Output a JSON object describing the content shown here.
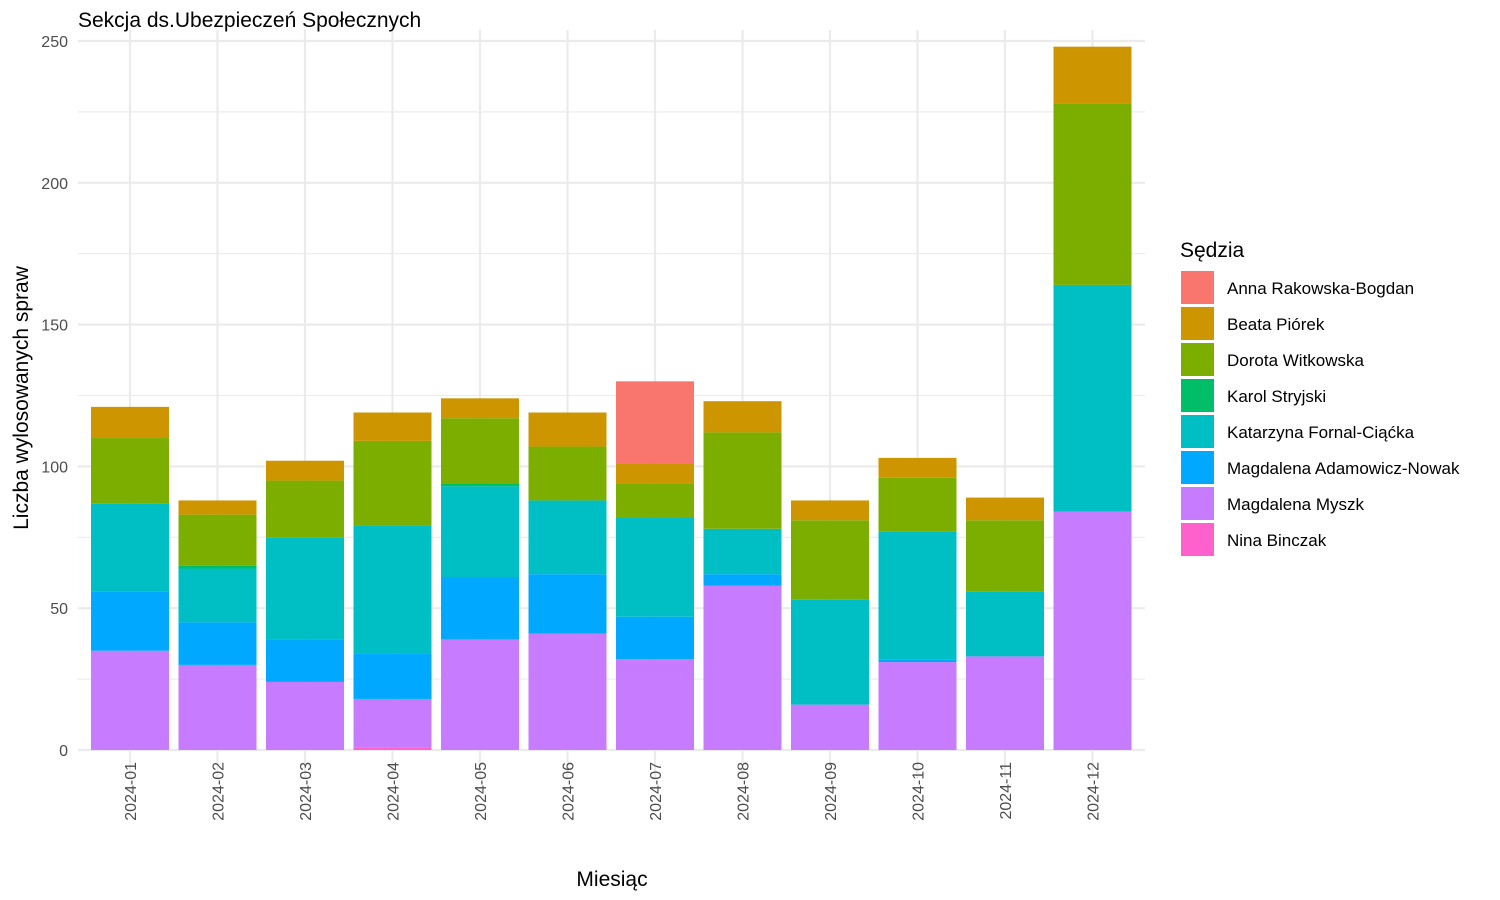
{
  "chart_data": {
    "type": "bar",
    "stacked": true,
    "title": "Sekcja ds.Ubezpieczeń Społecznych",
    "xlabel": "Miesiąc",
    "ylabel": "Liczba wylosowanych spraw",
    "ylim": [
      0,
      250
    ],
    "yticks": [
      0,
      50,
      100,
      150,
      200,
      250
    ],
    "grid": true,
    "legend_title": "Sędzia",
    "legend_position": "right",
    "categories": [
      "2024-01",
      "2024-02",
      "2024-03",
      "2024-04",
      "2024-05",
      "2024-06",
      "2024-07",
      "2024-08",
      "2024-09",
      "2024-10",
      "2024-11",
      "2024-12"
    ],
    "series": [
      {
        "name": "Anna Rakowska-Bogdan",
        "color": "#F8766D",
        "values": [
          0,
          0,
          0,
          0,
          0,
          0,
          29,
          0,
          0,
          0,
          0,
          0
        ]
      },
      {
        "name": "Beata Piórek",
        "color": "#CD9600",
        "values": [
          11,
          5,
          7,
          10,
          7,
          12,
          7,
          11,
          7,
          7,
          8,
          20
        ]
      },
      {
        "name": "Dorota Witkowska",
        "color": "#7CAE00",
        "values": [
          23,
          18,
          20,
          30,
          23,
          19,
          12,
          34,
          28,
          19,
          25,
          64
        ]
      },
      {
        "name": "Karol Stryjski",
        "color": "#00BE67",
        "values": [
          0,
          1,
          0,
          0,
          1,
          0,
          0,
          0,
          0,
          0,
          0,
          0
        ]
      },
      {
        "name": "Katarzyna Fornal-Ciąćka",
        "color": "#00BFC4",
        "values": [
          31,
          19,
          36,
          45,
          32,
          26,
          35,
          16,
          37,
          45,
          23,
          80
        ]
      },
      {
        "name": "Magdalena Adamowicz-Nowak",
        "color": "#00A9FF",
        "values": [
          21,
          15,
          15,
          16,
          22,
          21,
          15,
          4,
          0,
          1,
          0,
          0
        ]
      },
      {
        "name": "Magdalena Myszk",
        "color": "#C77CFF",
        "values": [
          35,
          30,
          24,
          17,
          39,
          41,
          32,
          58,
          16,
          31,
          33,
          84
        ]
      },
      {
        "name": "Nina Binczak",
        "color": "#FF61CC",
        "values": [
          0,
          0,
          0,
          1,
          0,
          0,
          0,
          0,
          0,
          0,
          0,
          0
        ]
      }
    ]
  }
}
